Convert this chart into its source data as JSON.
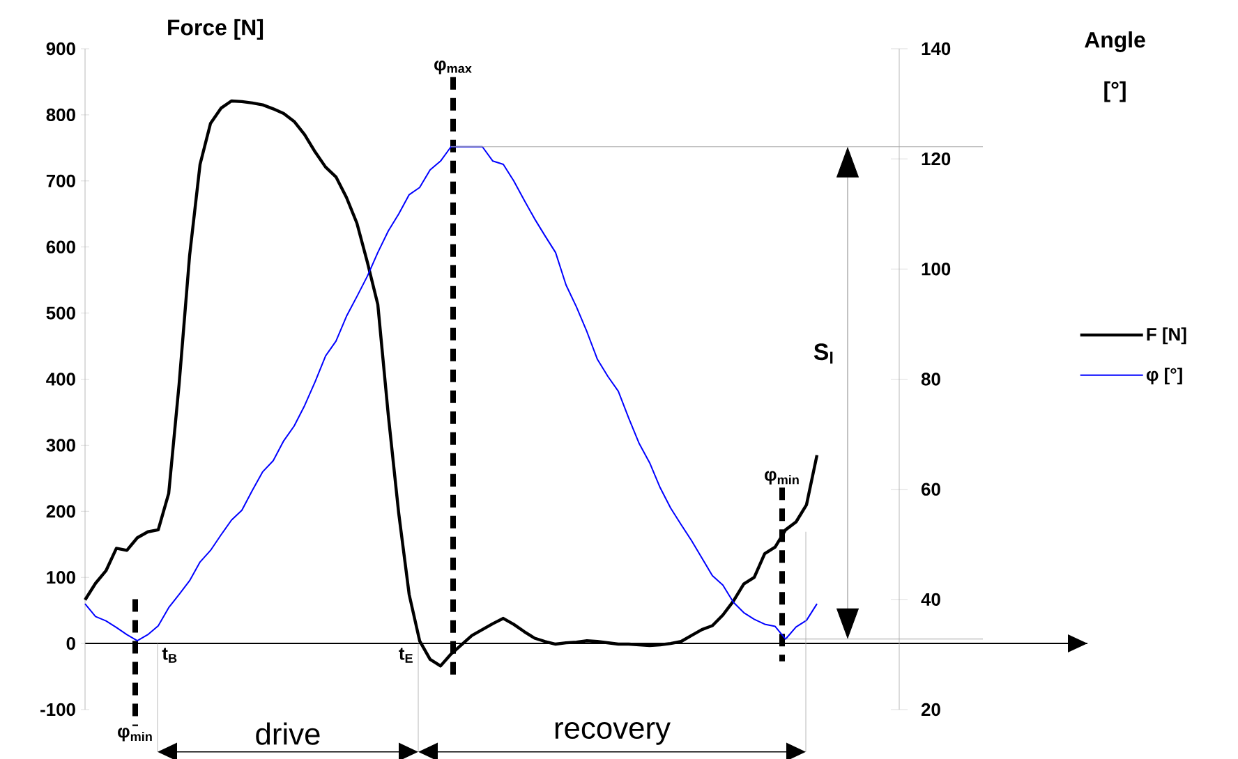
{
  "chart_data": {
    "type": "line",
    "ylabel": "Force [N]",
    "y2label": "Angle [°]",
    "categories": [
      null,
      null,
      null,
      null,
      null,
      null,
      null,
      null,
      null,
      null,
      null,
      null,
      null,
      null,
      null,
      null,
      null,
      null,
      null,
      null,
      null,
      null,
      null,
      null,
      null,
      null,
      null,
      null,
      null,
      null,
      null,
      null,
      null,
      null,
      null,
      null,
      null,
      null,
      null,
      null,
      null,
      null,
      null,
      null,
      null,
      null,
      null,
      null,
      null,
      null,
      null,
      null,
      null,
      null,
      null,
      null,
      null,
      null,
      null,
      null,
      null,
      null,
      null,
      null,
      null,
      null,
      null,
      null,
      null,
      null,
      null
    ],
    "ylim": [
      -100,
      900
    ],
    "yticks": [
      -100,
      0,
      100,
      200,
      300,
      400,
      500,
      600,
      700,
      800,
      900
    ],
    "y2lim": [
      20,
      140
    ],
    "y2ticks": [
      20,
      40,
      60,
      80,
      100,
      120,
      140
    ],
    "legend": "right",
    "series": [
      {
        "name": "F [N]",
        "color": "#000000",
        "values": [
          66,
          91,
          110,
          144,
          141,
          160,
          169,
          172,
          227,
          393,
          587,
          725,
          787,
          810,
          821,
          820,
          818,
          815,
          809,
          802,
          790,
          770,
          744,
          721,
          706,
          675,
          636,
          577,
          513,
          346,
          197,
          74,
          4,
          -24,
          -34,
          -16,
          -2,
          12,
          21,
          30,
          38,
          29,
          18,
          8,
          3,
          -1,
          1,
          2,
          4,
          3,
          1,
          -1,
          -1,
          -2,
          -3,
          -2,
          0,
          3,
          12,
          21,
          27,
          43,
          64,
          90,
          100,
          136,
          146,
          172,
          184,
          210,
          285
        ]
      },
      {
        "name": "φ [°]",
        "color": "#0000ff",
        "axis": "y2",
        "values": [
          39.2,
          36.9,
          36.1,
          34.9,
          33.6,
          32.5,
          33.6,
          35.2,
          38.5,
          40.9,
          43.4,
          46.8,
          48.9,
          51.7,
          54.4,
          56.2,
          59.8,
          63.2,
          65.2,
          68.8,
          71.5,
          75.2,
          79.5,
          84.2,
          86.9,
          91.4,
          95.0,
          98.7,
          103.0,
          106.9,
          110.0,
          113.5,
          114.8,
          118.0,
          119.6,
          122.2,
          122.2,
          122.2,
          122.2,
          119.6,
          119.0,
          116.0,
          112.5,
          109.1,
          106.0,
          103.0,
          97.1,
          93.1,
          88.6,
          83.6,
          80.5,
          77.8,
          72.9,
          68.3,
          64.8,
          60.3,
          56.6,
          53.6,
          50.7,
          47.5,
          44.3,
          42.6,
          39.5,
          37.6,
          36.4,
          35.5,
          35.1,
          32.8,
          35.0,
          36.2,
          39.2
        ]
      }
    ],
    "ref_lines": [
      {
        "axis": "y2",
        "value": 122.2,
        "color": "#a6a6a6"
      }
    ],
    "annotations": [
      "φ$_{min}$",
      "φ$_{max}$",
      "φ$_{min}$",
      "t$_{B}$",
      "t$_{E}$",
      "drive",
      "recovery",
      "S$_{l}$"
    ]
  }
}
